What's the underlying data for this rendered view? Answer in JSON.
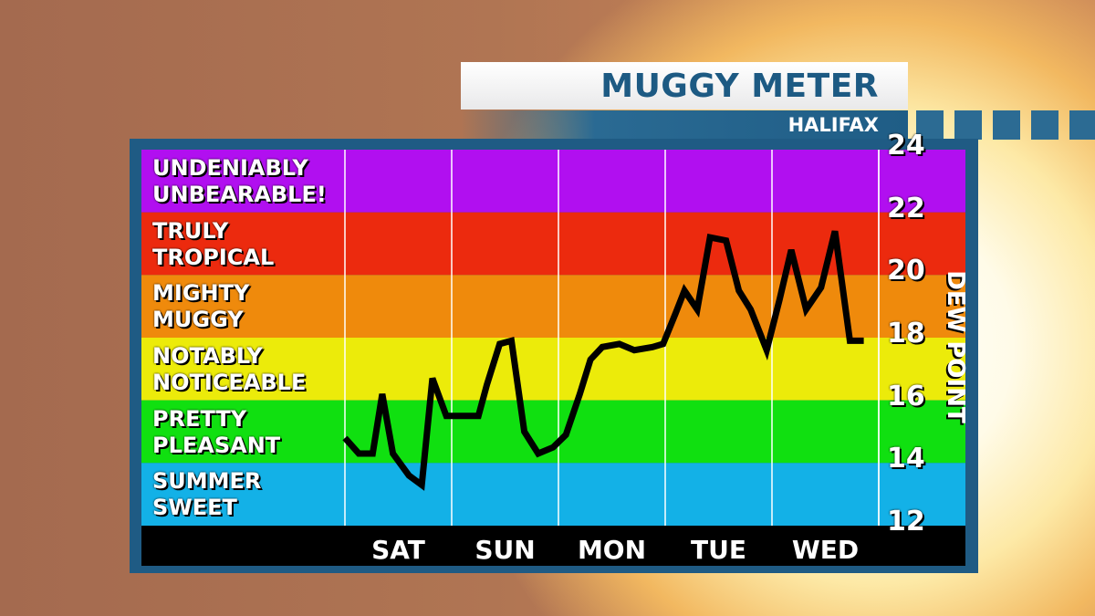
{
  "header": {
    "title": "MUGGY METER",
    "subtitle": "HALIFAX"
  },
  "chart_data": {
    "type": "line",
    "ylabel": "DEW POINT",
    "ylim": [
      12,
      24
    ],
    "yticks": [
      12,
      14,
      16,
      18,
      20,
      22,
      24
    ],
    "categories": [
      "SAT",
      "SUN",
      "MON",
      "TUE",
      "WED"
    ],
    "bands": [
      {
        "label_lines": [
          "UNDENIABLY",
          "UNBEARABLE!"
        ],
        "from": 22,
        "to": 24,
        "color": "#b10ff0"
      },
      {
        "label_lines": [
          "TRULY",
          "TROPICAL"
        ],
        "from": 20,
        "to": 22,
        "color": "#ec2a0e"
      },
      {
        "label_lines": [
          "MIGHTY",
          "MUGGY"
        ],
        "from": 18,
        "to": 20,
        "color": "#ef8a0c"
      },
      {
        "label_lines": [
          "NOTABLY",
          "NOTICEABLE"
        ],
        "from": 16,
        "to": 18,
        "color": "#eceb0a"
      },
      {
        "label_lines": [
          "PRETTY",
          "PLEASANT"
        ],
        "from": 14,
        "to": 16,
        "color": "#10e010"
      },
      {
        "label_lines": [
          "SUMMER",
          "SWEET"
        ],
        "from": 12,
        "to": 14,
        "color": "#13b1e7"
      }
    ],
    "series": [
      {
        "x": [
          0,
          0.13,
          0.26,
          0.35,
          0.45,
          0.6,
          0.72,
          0.82,
          0.95,
          1.11,
          1.25,
          1.33,
          1.45,
          1.56,
          1.68,
          1.81,
          1.95,
          2.07,
          2.2,
          2.3,
          2.41,
          2.57,
          2.71,
          2.88,
          2.98,
          3.1,
          3.18,
          3.3,
          3.42,
          3.57,
          3.69,
          3.8,
          3.95,
          4.07,
          4.18,
          4.32,
          4.46,
          4.59,
          4.73,
          4.86
        ],
        "values": [
          14.8,
          14.3,
          14.3,
          16.2,
          14.3,
          13.6,
          13.3,
          16.7,
          15.5,
          15.5,
          15.5,
          16.5,
          17.8,
          17.9,
          15.0,
          14.3,
          14.5,
          14.9,
          16.2,
          17.3,
          17.7,
          17.8,
          17.6,
          17.7,
          17.8,
          18.8,
          19.5,
          18.9,
          21.2,
          21.1,
          19.5,
          18.9,
          17.6,
          19.2,
          20.8,
          18.9,
          19.6,
          21.4,
          17.9,
          17.9
        ]
      }
    ]
  }
}
